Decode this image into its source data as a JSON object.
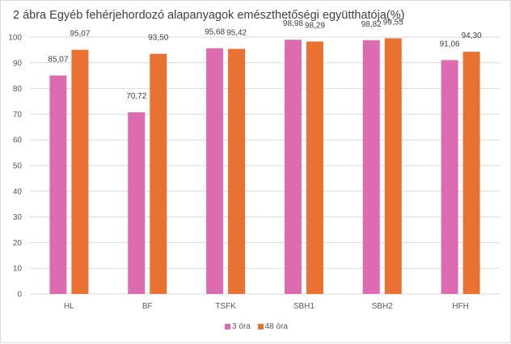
{
  "chart_data": {
    "type": "bar",
    "title": "2 ábra Egyéb fehérjehordozó alapanyagok emészthetőségi együtthatója(%)",
    "categories": [
      "HL",
      "BF",
      "TSFK",
      "SBH1",
      "SBH2",
      "HFH"
    ],
    "series": [
      {
        "name": "3 óra",
        "color": "#DD6BB0",
        "values": [
          85.07,
          70.72,
          95.68,
          98.98,
          98.82,
          91.06
        ],
        "labels": [
          "85,07",
          "70,72",
          "95,68",
          "98,98",
          "98,82",
          "91,06"
        ]
      },
      {
        "name": "48 óra",
        "color": "#E97132",
        "values": [
          95.07,
          93.5,
          95.42,
          98.29,
          99.55,
          94.3
        ],
        "labels": [
          "95,07",
          "93,50",
          "95,42",
          "98,29",
          "99,55",
          "94,30"
        ]
      }
    ],
    "yticks": [
      "0",
      "10",
      "20",
      "30",
      "40",
      "50",
      "60",
      "70",
      "80",
      "90",
      "100"
    ],
    "ylim": [
      0,
      100
    ],
    "grid": true,
    "legend": "bottom",
    "xlabel": "",
    "ylabel": ""
  }
}
